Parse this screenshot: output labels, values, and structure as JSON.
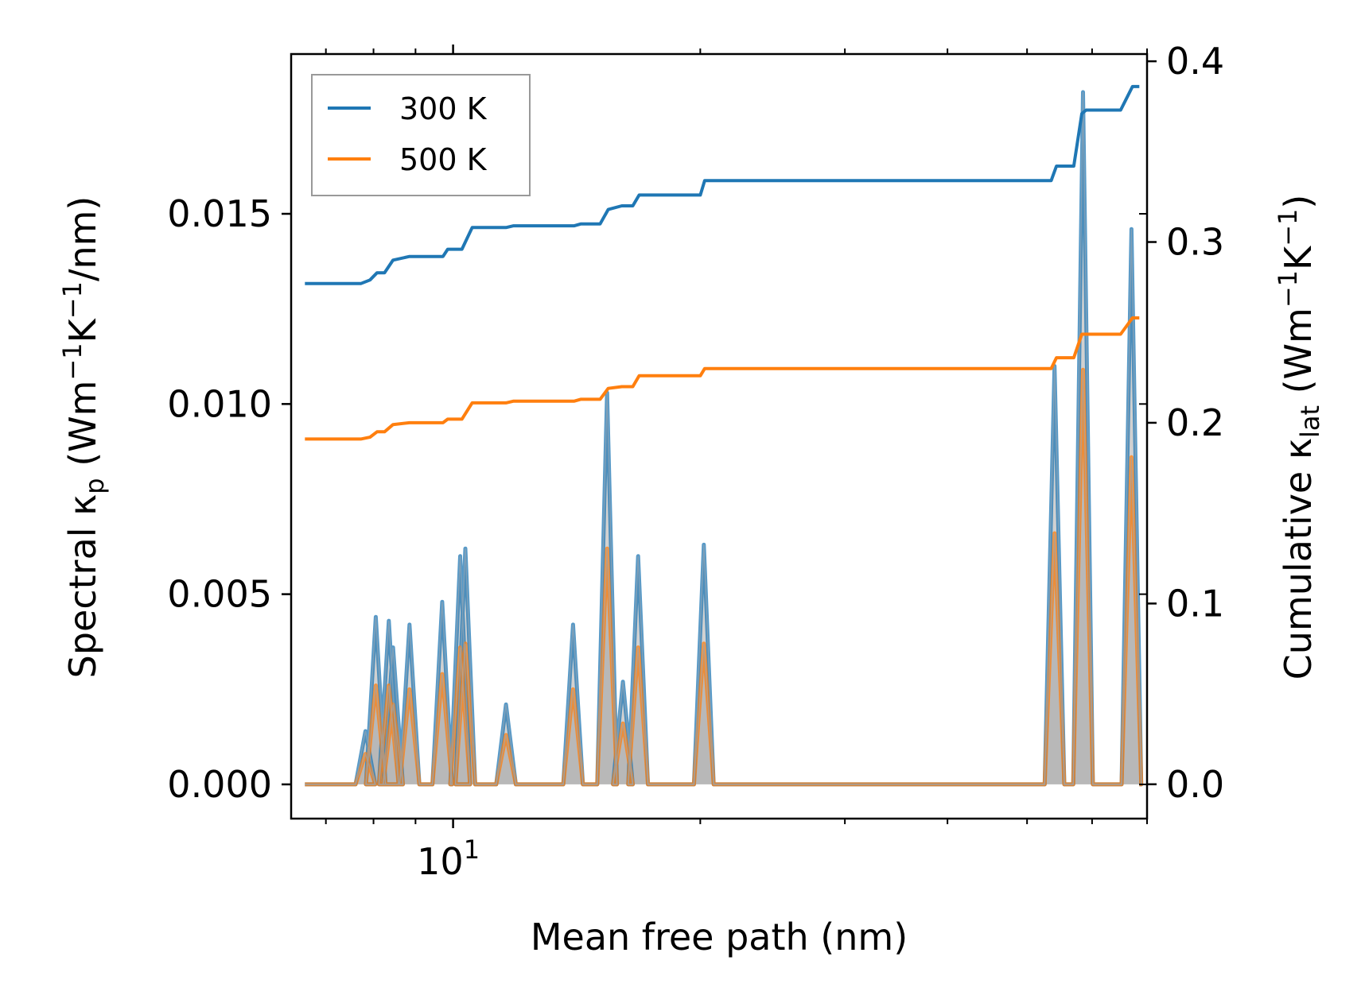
{
  "chart_data": {
    "type": "line",
    "title": "",
    "xlabel": "Mean free path (nm)",
    "xscale": "log",
    "xlim": [
      6.35,
      70
    ],
    "x_ticks": [
      {
        "value": 10,
        "base": "10",
        "exp": "1"
      }
    ],
    "ylabel_left": {
      "main": "Spectral κ",
      "sub": "p",
      "unit_pre": " (Wm",
      "exp1": "−1",
      "mid": "K",
      "exp2": "−1",
      "post": "/nm)"
    },
    "ylim_left": [
      -0.0009,
      0.0192
    ],
    "yticks_left": [
      "0.000",
      "0.005",
      "0.010",
      "0.015"
    ],
    "ylabel_right": {
      "main": "Cumulative κ",
      "sub": "lat",
      "unit_pre": " (Wm",
      "exp1": "−1",
      "mid": "K",
      "exp2": "−1",
      "post": ")"
    },
    "ylim_right": [
      -0.019,
      0.404
    ],
    "yticks_right": [
      "0.0",
      "0.1",
      "0.2",
      "0.3",
      "0.4"
    ],
    "legend": {
      "position": "top-left",
      "entries": [
        "300 K",
        "500 K"
      ]
    },
    "colors": {
      "300K": "#1f77b4",
      "500K": "#ff7f0e",
      "fill": "#999999"
    },
    "spectral": {
      "300K": {
        "peaks": [
          [
            7.82,
            0.0014
          ],
          [
            8.05,
            0.0044
          ],
          [
            8.35,
            0.0043
          ],
          [
            8.45,
            0.0036
          ],
          [
            8.85,
            0.0042
          ],
          [
            9.7,
            0.0048
          ],
          [
            10.2,
            0.006
          ],
          [
            10.35,
            0.0062
          ],
          [
            11.6,
            0.0021
          ],
          [
            14.0,
            0.0042
          ],
          [
            15.4,
            0.0103
          ],
          [
            16.1,
            0.0027
          ],
          [
            16.8,
            0.006
          ],
          [
            20.2,
            0.0063
          ],
          [
            54.0,
            0.011
          ],
          [
            58.5,
            0.0182
          ],
          [
            67.0,
            0.0146
          ]
        ]
      },
      "500K": {
        "peaks": [
          [
            7.82,
            0.0008
          ],
          [
            8.05,
            0.0026
          ],
          [
            8.35,
            0.0026
          ],
          [
            8.45,
            0.0021
          ],
          [
            8.85,
            0.0025
          ],
          [
            9.7,
            0.0029
          ],
          [
            10.2,
            0.0036
          ],
          [
            10.35,
            0.0037
          ],
          [
            11.6,
            0.0013
          ],
          [
            14.0,
            0.0025
          ],
          [
            15.4,
            0.0062
          ],
          [
            16.1,
            0.0016
          ],
          [
            16.8,
            0.0036
          ],
          [
            20.2,
            0.0037
          ],
          [
            54.0,
            0.0066
          ],
          [
            58.5,
            0.0109
          ],
          [
            67.0,
            0.0086
          ]
        ]
      }
    },
    "cumulative": {
      "300K": [
        [
          6.6,
          0.277
        ],
        [
          7.72,
          0.277
        ],
        [
          7.92,
          0.279
        ],
        [
          8.08,
          0.283
        ],
        [
          8.25,
          0.283
        ],
        [
          8.45,
          0.29
        ],
        [
          8.85,
          0.292
        ],
        [
          9.72,
          0.292
        ],
        [
          9.85,
          0.296
        ],
        [
          10.25,
          0.296
        ],
        [
          10.55,
          0.308
        ],
        [
          11.6,
          0.308
        ],
        [
          11.85,
          0.309
        ],
        [
          14.05,
          0.309
        ],
        [
          14.3,
          0.31
        ],
        [
          15.1,
          0.31
        ],
        [
          15.45,
          0.318
        ],
        [
          16.05,
          0.32
        ],
        [
          16.55,
          0.32
        ],
        [
          16.85,
          0.326
        ],
        [
          20.0,
          0.326
        ],
        [
          20.25,
          0.334
        ],
        [
          53.5,
          0.334
        ],
        [
          54.3,
          0.342
        ],
        [
          57.0,
          0.342
        ],
        [
          58.3,
          0.371
        ],
        [
          59.0,
          0.373
        ],
        [
          65.0,
          0.373
        ],
        [
          67.2,
          0.386
        ],
        [
          68.5,
          0.386
        ]
      ],
      "500K": [
        [
          6.6,
          0.191
        ],
        [
          7.72,
          0.191
        ],
        [
          7.92,
          0.192
        ],
        [
          8.08,
          0.195
        ],
        [
          8.25,
          0.195
        ],
        [
          8.45,
          0.199
        ],
        [
          8.85,
          0.2
        ],
        [
          9.72,
          0.2
        ],
        [
          9.85,
          0.202
        ],
        [
          10.25,
          0.202
        ],
        [
          10.55,
          0.211
        ],
        [
          11.6,
          0.211
        ],
        [
          11.85,
          0.212
        ],
        [
          14.05,
          0.212
        ],
        [
          14.3,
          0.213
        ],
        [
          15.1,
          0.213
        ],
        [
          15.45,
          0.219
        ],
        [
          16.05,
          0.22
        ],
        [
          16.55,
          0.22
        ],
        [
          16.85,
          0.226
        ],
        [
          20.0,
          0.226
        ],
        [
          20.25,
          0.23
        ],
        [
          53.5,
          0.23
        ],
        [
          54.3,
          0.236
        ],
        [
          57.0,
          0.236
        ],
        [
          58.3,
          0.249
        ],
        [
          59.0,
          0.249
        ],
        [
          65.0,
          0.249
        ],
        [
          67.2,
          0.258
        ],
        [
          68.5,
          0.258
        ]
      ]
    }
  }
}
